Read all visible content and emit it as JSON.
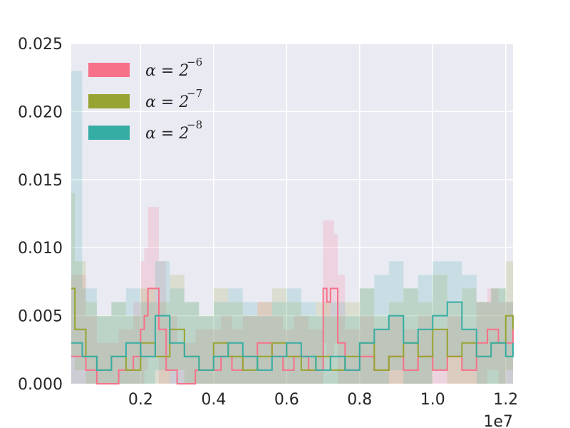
{
  "chart_data": {
    "type": "line",
    "title": "",
    "xlabel": "",
    "ylabel": "",
    "x_offset_label": "1e7",
    "xlim": [
      0.1,
      12.2
    ],
    "ylim": [
      0,
      0.025
    ],
    "x_ticks": [
      2,
      4,
      6,
      8,
      10,
      12
    ],
    "x_tick_labels": [
      "0.2",
      "0.4",
      "0.6",
      "0.8",
      "1.0",
      "1.2"
    ],
    "y_ticks": [
      0,
      0.005,
      0.01,
      0.015,
      0.02,
      0.025
    ],
    "y_tick_labels": [
      "0.000",
      "0.005",
      "0.010",
      "0.015",
      "0.020",
      "0.025"
    ],
    "grid": true,
    "legend_position": "top-left",
    "x_units_note": "x values in units of 1e6 steps (axis multiplier 1e7 shown)",
    "series": [
      {
        "name": "α = 2^-6",
        "legend_base": "α = 2",
        "legend_exp": "−6",
        "color": "#f77189",
        "x": [
          0.1,
          0.5,
          0.8,
          1.4,
          1.8,
          2.0,
          2.1,
          2.2,
          2.5,
          2.7,
          3.0,
          3.5,
          4.2,
          4.5,
          4.8,
          5.2,
          5.6,
          5.9,
          6.2,
          6.6,
          7.0,
          7.1,
          7.2,
          7.3,
          7.4,
          7.6,
          8.0,
          8.4,
          8.8,
          9.2,
          9.6,
          10.0,
          10.4,
          10.8,
          11.2,
          11.5,
          11.8,
          12.2
        ],
        "y": [
          0.002,
          0.001,
          0.0,
          0.001,
          0.002,
          0.004,
          0.005,
          0.007,
          0.004,
          0.001,
          0.0,
          0.001,
          0.002,
          0.001,
          0.002,
          0.003,
          0.002,
          0.001,
          0.002,
          0.001,
          0.007,
          0.006,
          0.007,
          0.007,
          0.003,
          0.001,
          0.002,
          0.001,
          0.002,
          0.001,
          0.002,
          0.001,
          0.002,
          0.001,
          0.003,
          0.004,
          0.003,
          0.004
        ],
        "envelope_upper": [
          0.008,
          0.005,
          0.003,
          0.004,
          0.006,
          0.009,
          0.01,
          0.013,
          0.009,
          0.005,
          0.003,
          0.004,
          0.005,
          0.004,
          0.005,
          0.006,
          0.005,
          0.004,
          0.005,
          0.004,
          0.012,
          0.012,
          0.012,
          0.011,
          0.008,
          0.004,
          0.005,
          0.004,
          0.005,
          0.004,
          0.005,
          0.004,
          0.005,
          0.004,
          0.006,
          0.007,
          0.006,
          0.007
        ],
        "envelope_lower": [
          0.0,
          0.0,
          0.0,
          0.0,
          0.0,
          0.0,
          0.001,
          0.002,
          0.0,
          0.0,
          0.0,
          0.0,
          0.0,
          0.0,
          0.0,
          0.0,
          0.0,
          0.0,
          0.0,
          0.0,
          0.003,
          0.002,
          0.002,
          0.003,
          0.0,
          0.0,
          0.0,
          0.0,
          0.0,
          0.0,
          0.0,
          0.0,
          0.0,
          0.0,
          0.0,
          0.001,
          0.0,
          0.001
        ]
      },
      {
        "name": "α = 2^-7",
        "legend_base": "α = 2",
        "legend_exp": "−7",
        "color": "#97a431",
        "x": [
          0.1,
          0.2,
          0.5,
          0.8,
          1.2,
          1.6,
          2.0,
          2.4,
          2.8,
          3.2,
          3.6,
          4.0,
          4.4,
          4.8,
          5.2,
          5.6,
          6.0,
          6.4,
          6.8,
          7.2,
          7.6,
          8.0,
          8.4,
          8.8,
          9.2,
          9.6,
          10.0,
          10.4,
          10.8,
          11.2,
          11.6,
          12.0,
          12.2
        ],
        "y": [
          0.007,
          0.004,
          0.002,
          0.001,
          0.002,
          0.001,
          0.003,
          0.002,
          0.004,
          0.002,
          0.001,
          0.003,
          0.002,
          0.001,
          0.002,
          0.003,
          0.002,
          0.001,
          0.002,
          0.001,
          0.002,
          0.003,
          0.001,
          0.002,
          0.003,
          0.002,
          0.004,
          0.002,
          0.003,
          0.002,
          0.003,
          0.005,
          0.004
        ],
        "envelope_upper": [
          0.014,
          0.009,
          0.006,
          0.005,
          0.006,
          0.005,
          0.007,
          0.006,
          0.008,
          0.006,
          0.005,
          0.007,
          0.006,
          0.005,
          0.006,
          0.007,
          0.006,
          0.005,
          0.006,
          0.005,
          0.006,
          0.007,
          0.005,
          0.006,
          0.007,
          0.006,
          0.008,
          0.006,
          0.007,
          0.006,
          0.007,
          0.009,
          0.008
        ],
        "envelope_lower": [
          0.002,
          0.001,
          0.0,
          0.0,
          0.0,
          0.0,
          0.0,
          0.0,
          0.001,
          0.0,
          0.0,
          0.0,
          0.0,
          0.0,
          0.0,
          0.0,
          0.0,
          0.0,
          0.0,
          0.0,
          0.0,
          0.0,
          0.0,
          0.0,
          0.0,
          0.0,
          0.001,
          0.0,
          0.0,
          0.0,
          0.0,
          0.001,
          0.001
        ]
      },
      {
        "name": "α = 2^-8",
        "legend_base": "α = 2",
        "legend_exp": "−8",
        "color": "#36ada4",
        "x": [
          0.1,
          0.4,
          0.8,
          1.2,
          1.6,
          2.0,
          2.4,
          2.8,
          3.2,
          3.6,
          4.0,
          4.4,
          4.8,
          5.2,
          5.6,
          6.0,
          6.4,
          6.8,
          7.2,
          7.6,
          8.0,
          8.4,
          8.8,
          9.2,
          9.6,
          10.0,
          10.4,
          10.6,
          10.8,
          11.2,
          11.6,
          12.0,
          12.2
        ],
        "y": [
          0.003,
          0.002,
          0.001,
          0.002,
          0.003,
          0.002,
          0.005,
          0.003,
          0.002,
          0.001,
          0.002,
          0.003,
          0.002,
          0.001,
          0.002,
          0.003,
          0.002,
          0.001,
          0.002,
          0.001,
          0.003,
          0.004,
          0.005,
          0.003,
          0.004,
          0.005,
          0.006,
          0.006,
          0.004,
          0.002,
          0.003,
          0.002,
          0.003
        ],
        "envelope_upper": [
          0.023,
          0.007,
          0.005,
          0.006,
          0.007,
          0.006,
          0.009,
          0.007,
          0.006,
          0.005,
          0.006,
          0.007,
          0.006,
          0.005,
          0.006,
          0.007,
          0.006,
          0.005,
          0.006,
          0.005,
          0.007,
          0.008,
          0.009,
          0.007,
          0.008,
          0.009,
          0.009,
          0.009,
          0.008,
          0.006,
          0.007,
          0.006,
          0.007
        ],
        "envelope_lower": [
          0.0,
          0.0,
          0.0,
          0.0,
          0.0,
          0.0,
          0.001,
          0.0,
          0.0,
          0.0,
          0.0,
          0.0,
          0.0,
          0.0,
          0.0,
          0.0,
          0.0,
          0.0,
          0.0,
          0.0,
          0.0,
          0.0,
          0.001,
          0.0,
          0.0,
          0.001,
          0.002,
          0.002,
          0.001,
          0.0,
          0.0,
          0.0,
          0.0
        ]
      }
    ]
  }
}
